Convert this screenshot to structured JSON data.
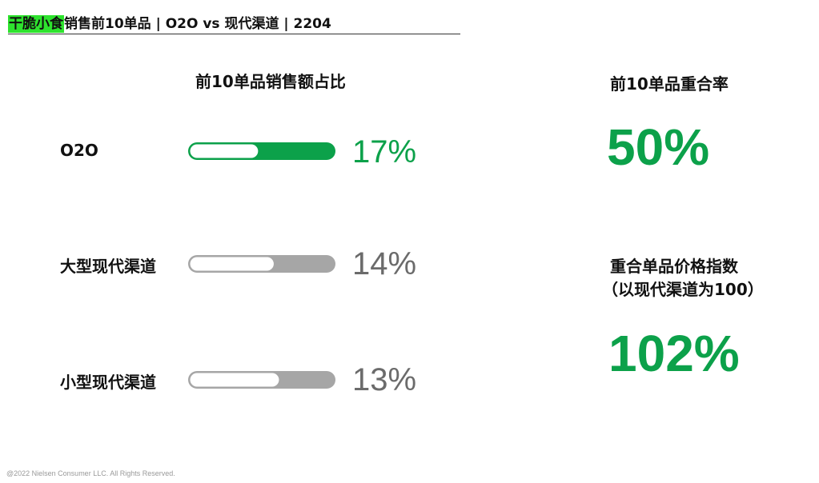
{
  "header": {
    "highlight": "干脆小食",
    "rest": "销售前10单品 | O2O vs 现代渠道 | 2204"
  },
  "left_panel": {
    "title": "前10单品销售额占比"
  },
  "right_panel": {
    "overlap_title": "前10单品重合率",
    "overlap_value": "50%",
    "price_index_title_line1": "重合单品价格指数",
    "price_index_title_line2": "（以现代渠道为100）",
    "price_index_value": "102%"
  },
  "colors": {
    "green": "#0ca14a",
    "gray": "#a6a6a6",
    "gray_text": "#6b6b6b",
    "highlight": "#2ee32e"
  },
  "chart_data": {
    "type": "bar",
    "title": "前10单品销售额占比",
    "categories": [
      "O2O",
      "大型现代渠道",
      "小型现代渠道"
    ],
    "values": [
      17,
      14,
      13
    ],
    "labels": [
      "17%",
      "14%",
      "13%"
    ],
    "unit": "%",
    "emphasis": [
      "green",
      "gray",
      "gray"
    ]
  },
  "footer": "@2022 Nielsen Consumer LLC. All Rights Reserved."
}
